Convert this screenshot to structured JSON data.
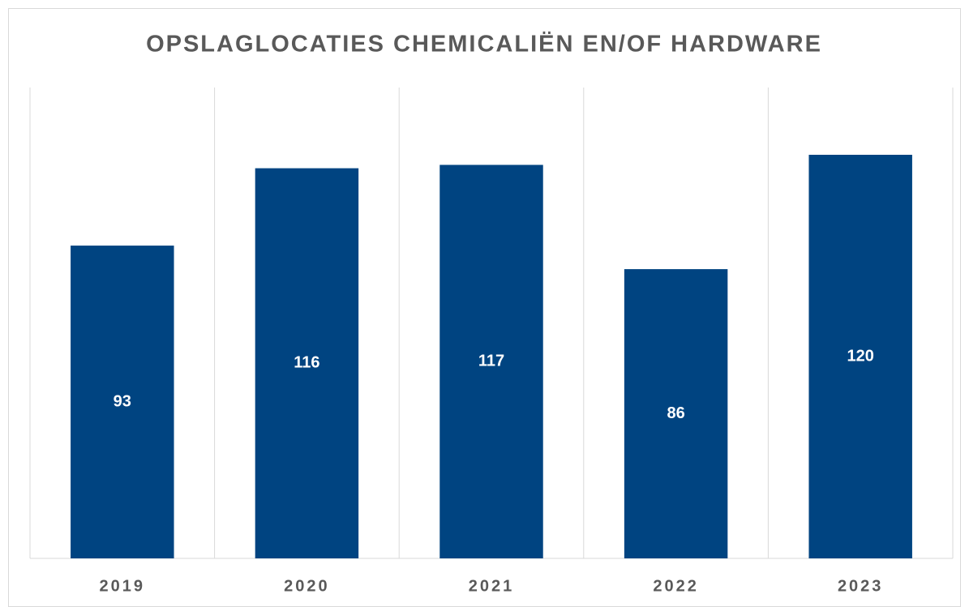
{
  "chart_data": {
    "type": "bar",
    "title": "OPSLAGLOCATIES CHEMICALIËN EN/OF HARDWARE",
    "categories": [
      "2019",
      "2020",
      "2021",
      "2022",
      "2023"
    ],
    "values": [
      93,
      116,
      117,
      86,
      120
    ],
    "color": "#004481",
    "ylim": [
      0,
      140
    ]
  }
}
